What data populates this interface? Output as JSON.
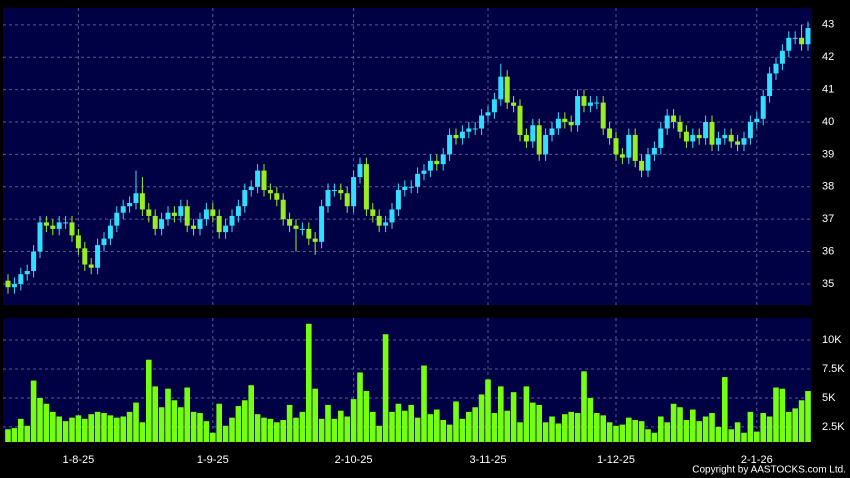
{
  "copyright": "Copyright by AASTOCKS.com Ltd.",
  "chart_data": [
    {
      "type": "candlestick",
      "up_color": "#33ddff",
      "down_color": "#99ee22",
      "grid": true,
      "ylim": [
        34.35,
        43.52
      ],
      "yticks": [
        35,
        36,
        37,
        38,
        39,
        40,
        41,
        42,
        43
      ],
      "open": [
        35.1,
        34.9,
        35.0,
        35.3,
        35.4,
        36.0,
        36.9,
        36.8,
        36.7,
        36.9,
        36.9,
        36.5,
        36.1,
        35.6,
        35.5,
        36.2,
        36.4,
        36.8,
        37.2,
        37.4,
        37.5,
        37.8,
        37.3,
        37.1,
        36.7,
        37.0,
        37.2,
        37.1,
        37.4,
        36.8,
        36.7,
        37.0,
        37.3,
        37.1,
        36.6,
        36.8,
        37.1,
        37.4,
        37.9,
        38.0,
        38.5,
        37.9,
        37.8,
        37.6,
        37.0,
        36.8,
        36.7,
        36.7,
        36.4,
        36.3,
        37.4,
        37.9,
        37.9,
        37.8,
        37.4,
        38.3,
        38.7,
        37.3,
        37.1,
        36.8,
        36.9,
        37.3,
        37.9,
        38.0,
        38.0,
        38.4,
        38.5,
        38.8,
        38.7,
        39.0,
        39.6,
        39.5,
        39.7,
        39.8,
        39.8,
        40.2,
        40.3,
        40.7,
        41.4,
        40.6,
        40.5,
        39.6,
        39.4,
        39.9,
        39.0,
        39.6,
        39.8,
        40.1,
        40.0,
        39.9,
        40.8,
        40.5,
        40.6,
        40.6,
        39.8,
        39.5,
        39.0,
        38.9,
        39.6,
        38.8,
        38.5,
        39.0,
        39.2,
        39.8,
        40.2,
        40.0,
        39.7,
        39.4,
        39.6,
        39.5,
        40.0,
        39.3,
        39.5,
        39.6,
        39.4,
        39.3,
        39.5,
        40.0,
        40.1,
        40.8,
        41.5,
        41.8,
        42.2,
        42.6,
        42.6,
        42.4
      ],
      "high": [
        35.3,
        35.2,
        35.5,
        35.6,
        36.2,
        37.1,
        37.1,
        37.0,
        37.1,
        37.1,
        37.1,
        36.7,
        36.3,
        35.8,
        36.4,
        36.6,
        37.0,
        37.4,
        37.6,
        37.7,
        38.5,
        38.3,
        37.5,
        37.3,
        37.2,
        37.4,
        37.4,
        37.6,
        37.6,
        37.0,
        37.2,
        37.5,
        37.5,
        37.3,
        37.0,
        37.3,
        37.6,
        38.1,
        38.2,
        38.7,
        38.7,
        38.1,
        38.0,
        37.8,
        37.2,
        37.0,
        36.9,
        36.9,
        36.6,
        37.6,
        38.1,
        38.1,
        38.1,
        38.0,
        38.5,
        38.9,
        38.9,
        37.5,
        37.3,
        37.1,
        37.5,
        38.1,
        38.2,
        38.2,
        38.6,
        38.7,
        39.0,
        39.0,
        39.2,
        39.8,
        39.8,
        39.9,
        40.0,
        40.0,
        40.4,
        40.5,
        40.9,
        41.8,
        41.6,
        40.8,
        40.7,
        39.8,
        40.1,
        40.1,
        39.8,
        40.0,
        40.3,
        40.3,
        40.2,
        41.0,
        41.0,
        40.8,
        40.8,
        40.8,
        40.0,
        39.7,
        39.2,
        39.8,
        39.8,
        39.0,
        39.2,
        39.4,
        40.0,
        40.4,
        40.4,
        40.2,
        39.9,
        39.8,
        39.8,
        40.2,
        40.2,
        39.7,
        39.8,
        39.8,
        39.6,
        39.7,
        40.2,
        40.3,
        41.0,
        41.7,
        42.0,
        42.4,
        42.8,
        42.8,
        43.0,
        43.1
      ],
      "low": [
        34.7,
        34.7,
        34.8,
        35.1,
        35.2,
        35.8,
        36.6,
        36.5,
        36.5,
        36.7,
        36.3,
        35.9,
        35.4,
        35.3,
        35.3,
        36.0,
        36.2,
        36.6,
        37.0,
        37.2,
        37.3,
        37.1,
        36.9,
        36.5,
        36.5,
        36.8,
        36.9,
        36.9,
        36.6,
        36.5,
        36.5,
        36.8,
        36.9,
        36.4,
        36.4,
        36.6,
        36.9,
        37.2,
        37.7,
        37.8,
        37.7,
        37.6,
        37.4,
        36.8,
        36.6,
        36.0,
        36.5,
        36.2,
        35.9,
        36.1,
        37.2,
        37.7,
        37.6,
        37.2,
        37.2,
        38.1,
        37.1,
        36.9,
        36.6,
        36.6,
        36.7,
        37.1,
        37.7,
        37.8,
        37.8,
        38.2,
        38.3,
        38.5,
        38.5,
        38.8,
        39.3,
        39.3,
        39.5,
        39.6,
        39.6,
        40.0,
        40.1,
        40.5,
        40.4,
        40.3,
        39.4,
        39.2,
        39.2,
        38.8,
        38.8,
        39.4,
        39.6,
        39.8,
        39.7,
        39.7,
        40.3,
        40.3,
        40.4,
        39.6,
        39.3,
        38.8,
        38.7,
        38.7,
        38.6,
        38.3,
        38.3,
        38.8,
        39.0,
        39.6,
        39.8,
        39.5,
        39.2,
        39.2,
        39.3,
        39.3,
        39.1,
        39.1,
        39.3,
        39.2,
        39.1,
        39.1,
        39.3,
        39.8,
        39.9,
        40.6,
        41.3,
        41.6,
        42.0,
        42.4,
        42.2,
        42.2
      ],
      "close": [
        34.9,
        35.0,
        35.3,
        35.4,
        36.0,
        36.9,
        36.8,
        36.7,
        36.9,
        36.9,
        36.5,
        36.1,
        35.6,
        35.5,
        36.2,
        36.4,
        36.8,
        37.2,
        37.4,
        37.5,
        37.8,
        37.3,
        37.1,
        36.7,
        37.0,
        37.2,
        37.1,
        37.4,
        36.8,
        36.7,
        37.0,
        37.3,
        37.1,
        36.6,
        36.8,
        37.1,
        37.4,
        37.9,
        38.0,
        38.5,
        37.9,
        37.8,
        37.6,
        37.0,
        36.8,
        36.7,
        36.7,
        36.4,
        36.3,
        37.4,
        37.9,
        37.9,
        37.8,
        37.4,
        38.3,
        38.7,
        37.3,
        37.1,
        36.8,
        36.9,
        37.3,
        37.9,
        38.0,
        38.0,
        38.4,
        38.5,
        38.8,
        38.7,
        39.0,
        39.6,
        39.5,
        39.7,
        39.8,
        39.8,
        40.2,
        40.3,
        40.7,
        41.4,
        40.6,
        40.5,
        39.6,
        39.4,
        39.9,
        39.0,
        39.6,
        39.8,
        40.1,
        40.0,
        39.9,
        40.8,
        40.5,
        40.6,
        40.6,
        39.8,
        39.5,
        39.0,
        38.9,
        39.6,
        38.8,
        38.5,
        39.0,
        39.2,
        39.8,
        40.2,
        40.0,
        39.7,
        39.4,
        39.6,
        39.5,
        40.0,
        39.3,
        39.5,
        39.6,
        39.4,
        39.3,
        39.5,
        40.0,
        40.1,
        40.8,
        41.5,
        41.8,
        42.2,
        42.6,
        42.6,
        42.4,
        42.9
      ]
    },
    {
      "type": "bar",
      "color": "#77ff11",
      "grid": true,
      "ylim": [
        1200,
        11900
      ],
      "yticks": [
        {
          "value": 2500,
          "label": "2.5K"
        },
        {
          "value": 5000,
          "label": "5K"
        },
        {
          "value": 7500,
          "label": "7.5K"
        },
        {
          "value": 10000,
          "label": "10K"
        }
      ],
      "categories": [
        null,
        null,
        null,
        null,
        null,
        null,
        null,
        null,
        null,
        null,
        null,
        "1-8-25",
        null,
        null,
        null,
        null,
        null,
        null,
        null,
        null,
        null,
        null,
        null,
        null,
        null,
        null,
        null,
        null,
        null,
        null,
        null,
        null,
        "1-9-25",
        null,
        null,
        null,
        null,
        null,
        null,
        null,
        null,
        null,
        null,
        null,
        null,
        null,
        null,
        null,
        null,
        null,
        null,
        null,
        null,
        null,
        "2-10-25",
        null,
        null,
        null,
        null,
        null,
        null,
        null,
        null,
        null,
        null,
        null,
        null,
        null,
        null,
        null,
        null,
        null,
        null,
        null,
        null,
        "3-11-25",
        null,
        null,
        null,
        null,
        null,
        null,
        null,
        null,
        null,
        null,
        null,
        null,
        null,
        null,
        null,
        null,
        null,
        null,
        null,
        "1-12-25",
        null,
        null,
        null,
        null,
        null,
        null,
        null,
        null,
        null,
        null,
        null,
        null,
        null,
        null,
        null,
        null,
        null,
        null,
        null,
        null,
        null,
        "2-1-26",
        null,
        null,
        null,
        null,
        null,
        null,
        null,
        null
      ],
      "values": [
        2300,
        2400,
        3200,
        2600,
        6500,
        5000,
        4500,
        3800,
        3400,
        3000,
        3300,
        3500,
        3200,
        3600,
        3800,
        3700,
        3500,
        3300,
        3400,
        3800,
        4600,
        2900,
        8300,
        6000,
        4200,
        5800,
        4800,
        4200,
        5900,
        3800,
        3700,
        3000,
        2000,
        4500,
        2600,
        3300,
        4300,
        4800,
        6100,
        3600,
        3300,
        3200,
        2900,
        3100,
        4400,
        3300,
        3800,
        11400,
        5800,
        3200,
        4400,
        3200,
        3900,
        3400,
        4900,
        7200,
        5600,
        3800,
        2600,
        10500,
        3800,
        4500,
        3900,
        4400,
        3300,
        7800,
        3600,
        4000,
        3100,
        2700,
        4700,
        3200,
        3800,
        4200,
        5300,
        6600,
        3700,
        6000,
        3900,
        5500,
        2900,
        6000,
        4600,
        4400,
        2900,
        3400,
        2800,
        3600,
        3800,
        3700,
        7300,
        5000,
        3700,
        3500,
        2900,
        2600,
        2700,
        3300,
        3100,
        3000,
        2300,
        2000,
        3400,
        2900,
        4500,
        4200,
        3100,
        4000,
        3000,
        3400,
        3700,
        2500,
        6800,
        2300,
        2900,
        2000,
        3800,
        2100,
        3700,
        3400,
        5900,
        5800,
        3800,
        4100,
        4800,
        5600
      ]
    }
  ]
}
